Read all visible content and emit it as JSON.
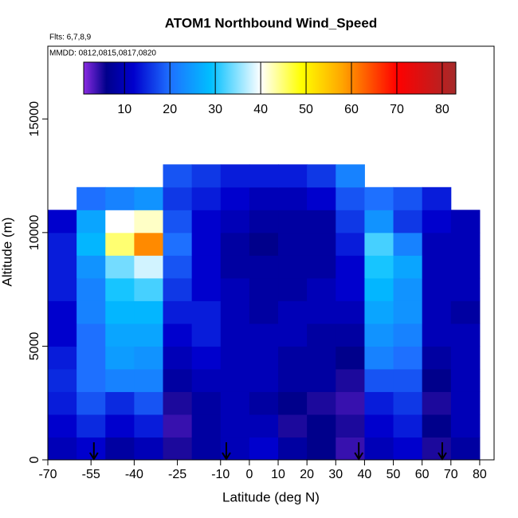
{
  "chart_data": {
    "type": "heatmap",
    "title": "ATOM1 Northbound Wind_Speed",
    "subtitle": "Flts: 6,7,8,9",
    "annotation": "MMDD: 0812,0815,0817,0820",
    "x_label": "Latitude (deg N)",
    "y_label": "Altitude (m)",
    "xlim": [
      -70,
      85
    ],
    "ylim": [
      0,
      18200
    ],
    "xticks": [
      -70,
      -55,
      -40,
      -25,
      -10,
      0,
      10,
      20,
      30,
      40,
      50,
      60,
      70,
      80
    ],
    "yticks": [
      0,
      5000,
      10000,
      15000
    ],
    "xbins": [
      -70,
      -60,
      -50,
      -40,
      -30,
      -20,
      -10,
      0,
      10,
      20,
      30,
      40,
      50,
      60,
      70,
      80
    ],
    "ybins": [
      0,
      1000,
      2000,
      3000,
      4000,
      5000,
      6000,
      7000,
      8000,
      9000,
      10000,
      11000,
      12000,
      13000
    ],
    "z": [
      [
        10,
        12,
        8,
        10,
        5,
        8,
        10,
        12,
        8,
        6,
        4,
        10,
        12,
        5,
        8
      ],
      [
        12,
        15,
        12,
        14,
        4,
        8,
        10,
        10,
        5,
        6,
        5,
        12,
        14,
        6,
        10
      ],
      [
        14,
        18,
        15,
        18,
        5,
        8,
        10,
        8,
        6,
        5,
        4,
        14,
        16,
        5,
        10
      ],
      [
        15,
        20,
        22,
        22,
        8,
        10,
        10,
        10,
        8,
        8,
        5,
        18,
        18,
        6,
        10
      ],
      [
        14,
        20,
        25,
        24,
        10,
        12,
        10,
        10,
        8,
        8,
        6,
        22,
        20,
        8,
        10
      ],
      [
        12,
        20,
        26,
        26,
        12,
        14,
        10,
        10,
        10,
        8,
        8,
        24,
        22,
        10,
        10
      ],
      [
        12,
        22,
        28,
        28,
        14,
        14,
        10,
        8,
        10,
        10,
        10,
        26,
        24,
        10,
        8
      ],
      [
        14,
        22,
        30,
        32,
        16,
        12,
        10,
        8,
        8,
        10,
        12,
        28,
        24,
        10,
        10
      ],
      [
        14,
        24,
        34,
        38,
        18,
        12,
        8,
        8,
        8,
        8,
        12,
        30,
        26,
        10,
        10
      ],
      [
        14,
        28,
        45,
        60,
        20,
        12,
        8,
        6,
        8,
        8,
        14,
        32,
        22,
        10,
        10
      ],
      [
        12,
        26,
        40,
        42,
        18,
        12,
        10,
        8,
        8,
        8,
        16,
        24,
        16,
        12,
        10
      ],
      [
        null,
        20,
        22,
        24,
        16,
        14,
        12,
        10,
        10,
        12,
        18,
        20,
        18,
        14,
        null
      ],
      [
        null,
        null,
        null,
        null,
        18,
        16,
        14,
        14,
        14,
        16,
        22,
        null,
        null,
        null,
        null
      ]
    ],
    "arrows": [
      -54,
      -8,
      38,
      67
    ],
    "colorscale": [
      {
        "value": 1,
        "color": "#8a2be2"
      },
      {
        "value": 6,
        "color": "#00008b"
      },
      {
        "value": 12,
        "color": "#0000cd"
      },
      {
        "value": 20,
        "color": "#1e70ff"
      },
      {
        "value": 29,
        "color": "#00bfff"
      },
      {
        "value": 40,
        "color": "#ffffff"
      },
      {
        "value": 49,
        "color": "#ffff00"
      },
      {
        "value": 58,
        "color": "#ffa500"
      },
      {
        "value": 70,
        "color": "#ff0000"
      },
      {
        "value": 83,
        "color": "#a52a2a"
      }
    ],
    "colorbar_lim": [
      1,
      83
    ],
    "colorbar_ticks": [
      10,
      20,
      30,
      40,
      50,
      60,
      70,
      80
    ]
  }
}
